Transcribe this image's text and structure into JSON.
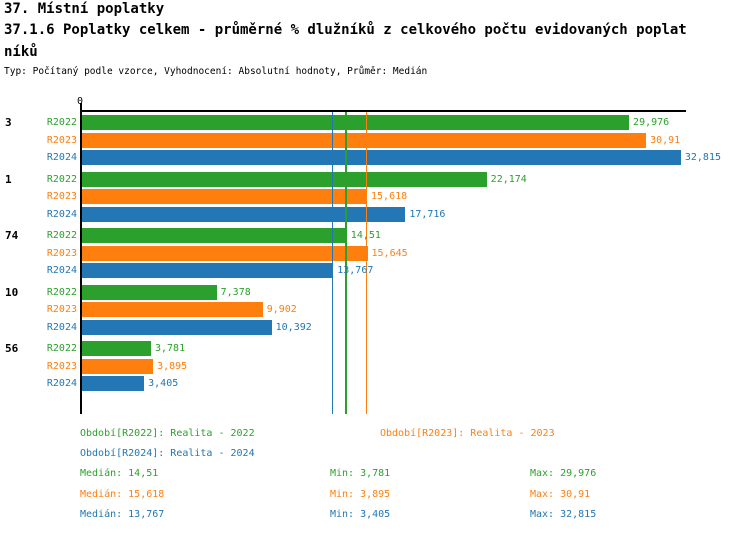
{
  "header": {
    "title_line1": "37. Místní poplatky",
    "title_line2": "37.1.6 Poplatky celkem - průměrné % dlužníků z celkového počtu evidovaných poplat",
    "title_line3": "níků",
    "meta": "Typ: Počítaný podle vzorce, Vyhodnocení: Absolutní hodnoty, Průměr: Medián"
  },
  "chart_data": {
    "type": "bar",
    "orientation": "horizontal",
    "title": "37.1.6 Poplatky celkem - průměrné % dlužníků z celkového počtu evidovaných poplatníků",
    "origin_tick_label": "0",
    "xlim": [
      0,
      33.1
    ],
    "grid": false,
    "value_format": "czech decimal comma",
    "series": [
      {
        "name": "R2022",
        "color": "#2ca02c",
        "legend": "Období[R2022]: Realita - 2022",
        "median": 14.51,
        "min": 3.781,
        "max": 29.976
      },
      {
        "name": "R2023",
        "color": "#ff7f0e",
        "legend": "Období[R2023]: Realita - 2023",
        "median": 15.618,
        "min": 3.895,
        "max": 30.91
      },
      {
        "name": "R2024",
        "color": "#2277b4",
        "legend": "Období[R2024]: Realita - 2024",
        "median": 13.767,
        "min": 3.405,
        "max": 32.815
      }
    ],
    "categories": [
      "3",
      "1",
      "74",
      "10",
      "56"
    ],
    "groups": [
      {
        "label": "3",
        "values": [
          29.976,
          30.91,
          32.815
        ],
        "displays": [
          "29,976",
          "30,91",
          "32,815"
        ]
      },
      {
        "label": "1",
        "values": [
          22.174,
          15.618,
          17.716
        ],
        "displays": [
          "22,174",
          "15,618",
          "17,716"
        ]
      },
      {
        "label": "74",
        "values": [
          14.51,
          15.645,
          13.767
        ],
        "displays": [
          "14,51",
          "15,645",
          "13,767"
        ]
      },
      {
        "label": "10",
        "values": [
          7.378,
          9.902,
          10.392
        ],
        "displays": [
          "7,378",
          "9,902",
          "10,392"
        ]
      },
      {
        "label": "56",
        "values": [
          3.781,
          3.895,
          3.405
        ],
        "displays": [
          "3,781",
          "3,895",
          "3,405"
        ]
      }
    ],
    "median_lines": [
      {
        "series": "R2022",
        "value": 14.51
      },
      {
        "series": "R2023",
        "value": 15.618
      },
      {
        "series": "R2024",
        "value": 13.767
      }
    ]
  },
  "stats": {
    "rows": [
      {
        "series": "R2022",
        "median": "Medián: 14,51",
        "min": "Min: 3,781",
        "max": "Max: 29,976"
      },
      {
        "series": "R2023",
        "median": "Medián: 15,618",
        "min": "Min: 3,895",
        "max": "Max: 30,91"
      },
      {
        "series": "R2024",
        "median": "Medián: 13,767",
        "min": "Min: 3,405",
        "max": "Max: 32,815"
      }
    ]
  }
}
